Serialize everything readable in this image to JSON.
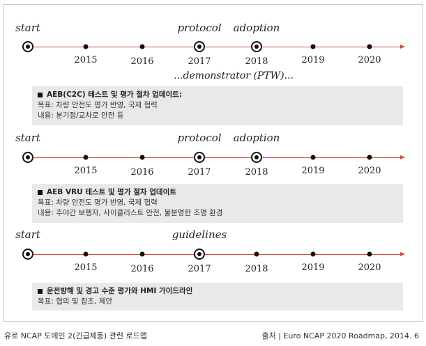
{
  "timelines": [
    {
      "labels": {
        "start": "start",
        "protocol": "protocol",
        "adoption": "adoption"
      },
      "years": [
        "2015",
        "2016",
        "2017",
        "2018",
        "2019",
        "2020"
      ],
      "demonstrator": "...demonstrator (PTW)...",
      "box": {
        "title": "AEB(C2C) 테스트 및 평가 절차 업데이트:",
        "lines": [
          "목표: 차량 안전도 평가 반영, 국제 협력",
          "내용: 분기점/교차로 안전 등"
        ]
      }
    },
    {
      "labels": {
        "start": "start",
        "protocol": "protocol",
        "adoption": "adoption"
      },
      "years": [
        "2015",
        "2016",
        "2017",
        "2018",
        "2019",
        "2020"
      ],
      "box": {
        "title": "AEB VRU 테스트 및 평가 절차 업데이트",
        "lines": [
          "목표: 차량 안전도 평가 반영, 국제 협력",
          "내용: 주야간 보행자, 사이클리스트 안전, 불분명한 조명 환경"
        ]
      }
    },
    {
      "labels": {
        "start": "start",
        "guidelines": "guidelines"
      },
      "years": [
        "2015",
        "2016",
        "2017",
        "2018",
        "2019",
        "2020"
      ],
      "box": {
        "title": "운전방해 및 경고 수준 평가와 HMI 가이드라인",
        "lines": [
          "목표: 협의 및 참조, 제안"
        ]
      }
    }
  ],
  "caption": {
    "left": "유로 NCAP 도메인 2(긴급제동) 관련 로드맵",
    "right": "출처 | Euro NCAP 2020 Roadmap, 2014. 6"
  },
  "colors": {
    "line": "#d24a3a",
    "box": "#e9e9e9"
  }
}
